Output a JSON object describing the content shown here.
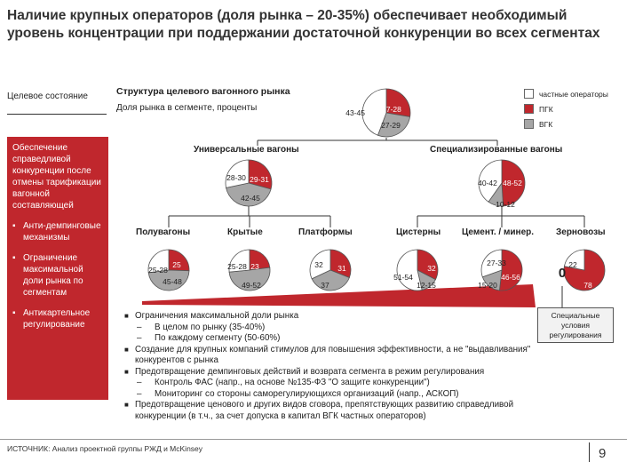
{
  "title": "Наличие крупных операторов (доля рынка – 20-35%) обеспечивает необходимый уровень концентрации при поддержании достаточной конкуренции во всех сегментах",
  "left_panel": {
    "heading": "Целевое состояние",
    "main_text": "Обеспечение справедливой конкуренции после отмены тарификации вагонной составляющей",
    "bullets": [
      "Анти-демпинговые механизмы",
      "Ограничение максимальной доли рынка по сегментам",
      "Антикартельное регулирование"
    ]
  },
  "structure": {
    "title": "Структура целевого вагонного рынка",
    "subtitle": "Доля рынка в сегменте, проценты"
  },
  "legend": [
    {
      "label": "частные операторы",
      "color": "#ffffff"
    },
    {
      "label": "ПГК",
      "color": "#c0272d"
    },
    {
      "label": "ВГК",
      "color": "#a6a6a6"
    }
  ],
  "pies": {
    "total": {
      "private": "43-45",
      "pgk": "27-28",
      "vgk": "27-29"
    },
    "universal": {
      "label": "Универсальные вагоны",
      "private": "28-30",
      "pgk": "29-31",
      "vgk": "42-45"
    },
    "special": {
      "label": "Специализированные вагоны",
      "private": "40-42",
      "pgk": "48-52",
      "vgk": "10-12"
    },
    "gondola": {
      "label": "Полувагоны",
      "private": "25-28",
      "pgk": "25",
      "vgk": "45-48"
    },
    "covered": {
      "label": "Крытые",
      "private": "25-28",
      "pgk": "23",
      "vgk": "49-52"
    },
    "platforms": {
      "label": "Платформы",
      "private": "32",
      "pgk": "31",
      "vgk": "37"
    },
    "tanks": {
      "label": "Цистерны",
      "private": "51-54",
      "pgk": "32",
      "vgk": "12-15"
    },
    "cement": {
      "label": "Цемент. / минер.",
      "private": "27-33",
      "pgk": "46-56",
      "vgk": "15-20"
    },
    "grain": {
      "label": "Зерновозы",
      "private": "22",
      "pgk": "78",
      "vgk": "0"
    }
  },
  "callout": "Специальные условия регулирования",
  "measures": [
    {
      "level": 1,
      "text": "Ограничения максимальной доли рынка"
    },
    {
      "level": 2,
      "text": "В целом по рынку (35-40%)"
    },
    {
      "level": 2,
      "text": "По каждому сегменту (50-60%)"
    },
    {
      "level": 1,
      "text": "Создание для крупных компаний стимулов для повышения эффективности, а не \"выдавливания\" конкурентов с рынка"
    },
    {
      "level": 1,
      "text": "Предотвращение демпинговых действий и возврата сегмента в режим регулирования"
    },
    {
      "level": 2,
      "text": "Контроль ФАС (напр., на основе №135-ФЗ \"О защите конкуренции\")"
    },
    {
      "level": 2,
      "text": "Мониторинг со стороны саморегулирующихся организаций (напр., АСКОП)"
    },
    {
      "level": 1,
      "text": "Предотвращение ценового и других видов сговора, препятствующих развитию справедливой конкуренции (в т.ч., за счет допуска в капитал ВГК частных операторов)"
    }
  ],
  "footer": {
    "source": "ИСТОЧНИК: Анализ проектной группы РЖД и McKinsey",
    "page": "9"
  }
}
